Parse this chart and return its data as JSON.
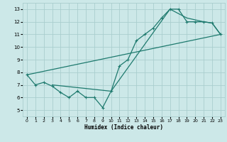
{
  "xlabel": "Humidex (Indice chaleur)",
  "xlim": [
    -0.5,
    23.5
  ],
  "ylim": [
    4.5,
    13.5
  ],
  "xticks": [
    0,
    1,
    2,
    3,
    4,
    5,
    6,
    7,
    8,
    9,
    10,
    11,
    12,
    13,
    14,
    15,
    16,
    17,
    18,
    19,
    20,
    21,
    22,
    23
  ],
  "yticks": [
    5,
    6,
    7,
    8,
    9,
    10,
    11,
    12,
    13
  ],
  "bg_color": "#cce8e8",
  "grid_color": "#aacece",
  "line_color": "#1e7a6e",
  "line1_x": [
    0,
    1,
    2,
    3,
    4,
    5,
    6,
    7,
    8,
    9,
    10,
    11,
    12,
    13,
    14,
    15,
    16,
    17,
    18,
    19,
    20,
    21,
    22,
    23
  ],
  "line1_y": [
    7.8,
    7.0,
    7.2,
    6.9,
    6.4,
    6.0,
    6.5,
    6.0,
    6.0,
    5.2,
    6.5,
    8.5,
    9.0,
    10.5,
    11.0,
    11.5,
    12.3,
    13.0,
    13.0,
    12.0,
    12.0,
    12.0,
    11.9,
    11.0
  ],
  "line2_x": [
    0,
    23
  ],
  "line2_y": [
    7.8,
    11.0
  ],
  "line3_x": [
    3,
    10,
    17,
    19,
    21,
    22,
    23
  ],
  "line3_y": [
    7.0,
    6.5,
    13.0,
    12.3,
    12.0,
    11.9,
    11.0
  ]
}
